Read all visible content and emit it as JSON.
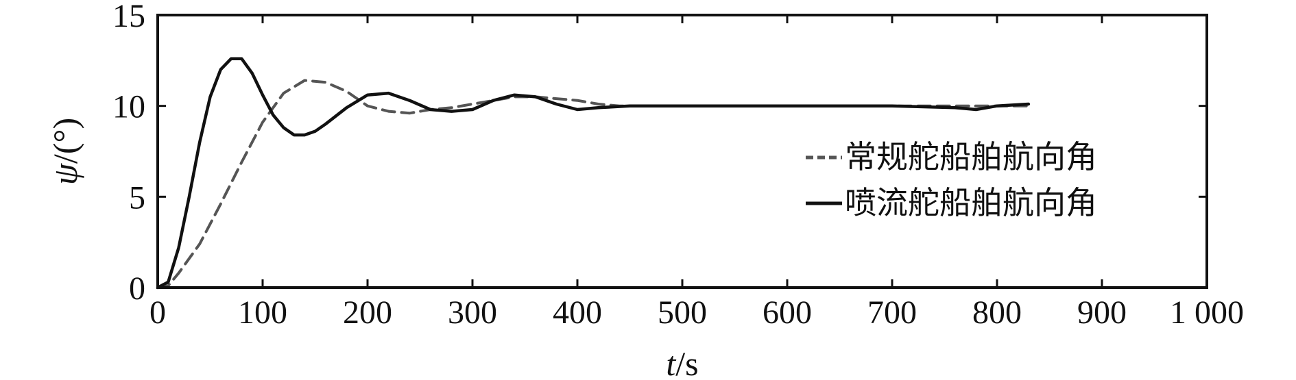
{
  "chart_data": {
    "type": "line",
    "title": "",
    "xlabel_var": "t",
    "xlabel_unit": "/s",
    "ylabel_var": "ψ",
    "ylabel_unit": "/(°)",
    "xlim": [
      0,
      1000
    ],
    "ylim": [
      0,
      15
    ],
    "xticks": [
      0,
      100,
      200,
      300,
      400,
      500,
      600,
      700,
      800,
      900,
      1000
    ],
    "xtick_labels": [
      "0",
      "100",
      "200",
      "300",
      "400",
      "500",
      "600",
      "700",
      "800",
      "900",
      "1 000"
    ],
    "yticks": [
      0,
      5,
      10,
      15
    ],
    "ytick_labels": [
      "0",
      "5",
      "10",
      "15"
    ],
    "grid": false,
    "legend_position": "right",
    "series": [
      {
        "name": "常规舵船舶航向角",
        "style": "dashed",
        "color": "#555555",
        "x": [
          0,
          10,
          20,
          40,
          60,
          80,
          100,
          120,
          140,
          160,
          180,
          200,
          220,
          240,
          260,
          280,
          300,
          320,
          340,
          360,
          380,
          400,
          420,
          440,
          460,
          500,
          600,
          700,
          800,
          830
        ],
        "y": [
          0,
          0.1,
          0.8,
          2.4,
          4.6,
          6.9,
          9.1,
          10.7,
          11.4,
          11.3,
          10.8,
          10.0,
          9.7,
          9.6,
          9.8,
          9.9,
          10.1,
          10.3,
          10.5,
          10.5,
          10.4,
          10.3,
          10.1,
          10.0,
          10.0,
          10.0,
          10.0,
          10.0,
          10.0,
          10.0
        ]
      },
      {
        "name": "喷流舵船舶航向角",
        "style": "solid",
        "color": "#111111",
        "x": [
          0,
          10,
          20,
          30,
          40,
          50,
          60,
          70,
          80,
          90,
          100,
          110,
          120,
          130,
          140,
          150,
          160,
          180,
          200,
          220,
          240,
          260,
          280,
          300,
          320,
          340,
          360,
          380,
          400,
          420,
          450,
          500,
          600,
          700,
          760,
          780,
          800,
          830
        ],
        "y": [
          0,
          0.3,
          2.2,
          5.0,
          8.0,
          10.5,
          12.0,
          12.6,
          12.6,
          11.8,
          10.6,
          9.5,
          8.8,
          8.4,
          8.4,
          8.6,
          9.0,
          9.9,
          10.6,
          10.7,
          10.3,
          9.8,
          9.7,
          9.8,
          10.3,
          10.6,
          10.5,
          10.1,
          9.8,
          9.9,
          10.0,
          10.0,
          10.0,
          10.0,
          9.9,
          9.8,
          10.0,
          10.1
        ]
      }
    ]
  }
}
